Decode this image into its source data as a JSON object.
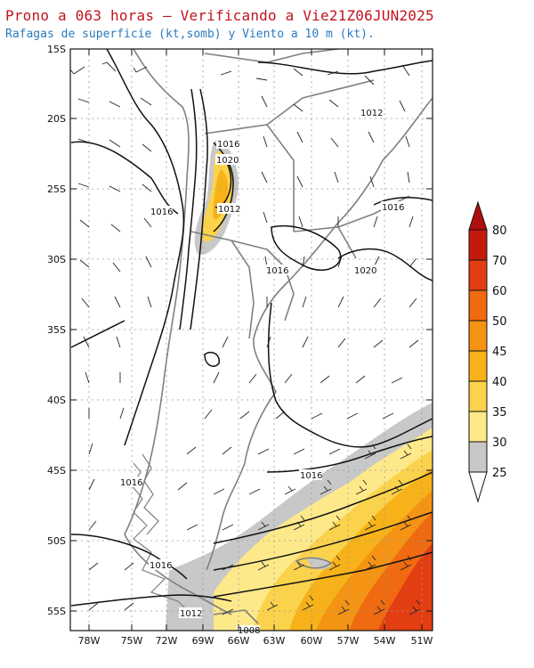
{
  "header": {
    "title": "Prono a 063 horas — Verificando a Vie21Z06JUN2025",
    "subtitle": "Rafagas de superficie (kt,somb) y Viento a 10 m (kt)."
  },
  "map": {
    "lat_labels": [
      "15S",
      "20S",
      "25S",
      "30S",
      "35S",
      "40S",
      "45S",
      "50S",
      "55S"
    ],
    "lon_labels": [
      "78W",
      "75W",
      "72W",
      "69W",
      "66W",
      "63W",
      "60W",
      "57W",
      "54W",
      "51W"
    ],
    "isobar_labels": [
      "1012",
      "1016",
      "1020",
      "1012",
      "1016",
      "1016",
      "1016",
      "1020",
      "1016",
      "1016",
      "1016",
      "1012",
      "1008"
    ],
    "gust_colors": {
      "25": "#c8c8c8",
      "30": "#fde98a",
      "35": "#fbd24b",
      "40": "#f7b21a",
      "45": "#f49314",
      "50": "#ef6a10",
      "60": "#e33d12",
      "70": "#c41a0e",
      "80": "#8e0a0a"
    }
  },
  "colorbar": {
    "levels": [
      "25",
      "30",
      "35",
      "40",
      "45",
      "50",
      "60",
      "70",
      "80"
    ],
    "colors": [
      "#c8c8c8",
      "#fde98a",
      "#fbd24b",
      "#f7b21a",
      "#f49314",
      "#ef6a10",
      "#e33d12",
      "#c41a0e",
      "#8e0a0a"
    ],
    "under_color": "#ffffff",
    "over_color": "#b00f0f"
  }
}
